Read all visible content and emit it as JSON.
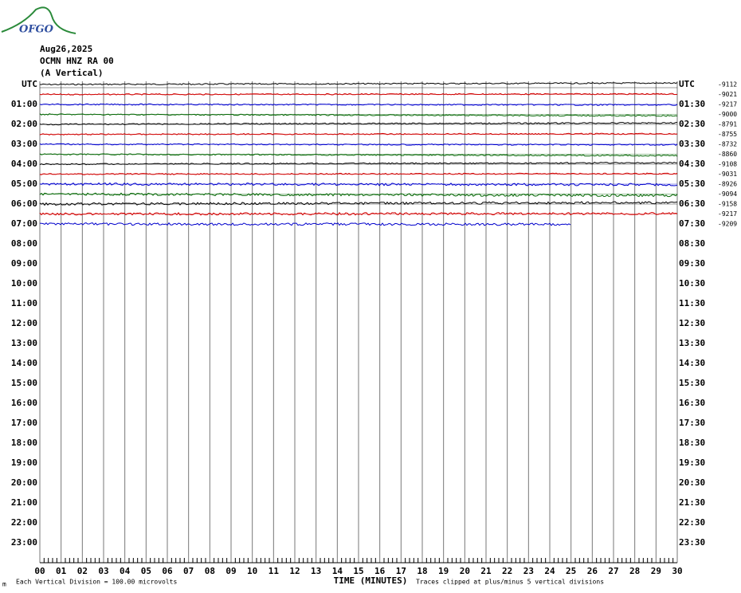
{
  "header": {
    "logo": "OFGO",
    "date": "Aug26,2025",
    "station": "OCMN HNZ RA 00",
    "component": "(A Vertical)"
  },
  "left_labels": [
    "UTC",
    "01:00",
    "02:00",
    "03:00",
    "04:00",
    "05:00",
    "06:00",
    "07:00",
    "08:00",
    "09:00",
    "10:00",
    "11:00",
    "12:00",
    "13:00",
    "14:00",
    "15:00",
    "16:00",
    "17:00",
    "18:00",
    "19:00",
    "20:00",
    "21:00",
    "22:00",
    "23:00"
  ],
  "right_labels": [
    "UTC",
    "01:30",
    "02:30",
    "03:30",
    "04:30",
    "05:30",
    "06:30",
    "07:30",
    "08:30",
    "09:30",
    "10:30",
    "11:30",
    "12:30",
    "13:30",
    "14:30",
    "15:30",
    "16:30",
    "17:30",
    "18:30",
    "19:30",
    "20:30",
    "21:30",
    "22:30",
    "23:30"
  ],
  "trace_offsets": [
    "-9112",
    "-9021",
    "-9217",
    "-9000",
    "-8791",
    "-8755",
    "-8732",
    "-8860",
    "-9108",
    "-9031",
    "-8926",
    "-9094",
    "-9158",
    "-9217",
    "-9209"
  ],
  "trace_colors": [
    "#000000",
    "#d00000",
    "#0000cc",
    "#006400"
  ],
  "x_labels": [
    "00",
    "01",
    "02",
    "03",
    "04",
    "05",
    "06",
    "07",
    "08",
    "09",
    "10",
    "11",
    "12",
    "13",
    "14",
    "15",
    "16",
    "17",
    "18",
    "19",
    "20",
    "21",
    "22",
    "23",
    "24",
    "25",
    "26",
    "27",
    "28",
    "29",
    "30"
  ],
  "footer": {
    "mark": "m",
    "scale": "Each Vertical Division =  100.00 microvolts",
    "axis_title": "TIME (MINUTES)",
    "note": "Traces clipped at plus/minus 5 vertical divisions"
  }
}
